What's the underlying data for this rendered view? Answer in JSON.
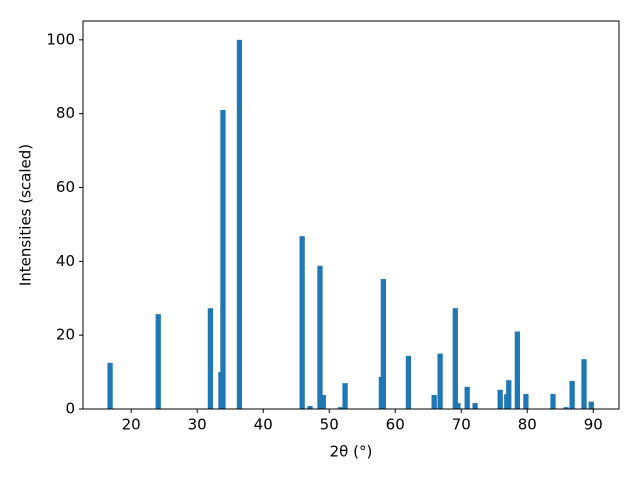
{
  "chart_data": {
    "type": "bar",
    "xlabel": "2θ (°)",
    "ylabel": "Intensities (scaled)",
    "x": [
      16.8,
      24.1,
      32.0,
      33.6,
      33.9,
      36.4,
      45.9,
      47.1,
      48.6,
      49.1,
      51.7,
      52.4,
      57.9,
      58.2,
      62.0,
      65.9,
      66.8,
      69.1,
      69.5,
      70.9,
      72.1,
      75.9,
      76.9,
      77.2,
      78.5,
      79.8,
      83.9,
      85.9,
      86.8,
      88.6,
      89.7
    ],
    "values": [
      12.5,
      25.7,
      27.3,
      10,
      81,
      100,
      46.8,
      0.8,
      38.8,
      3.8,
      0.5,
      7,
      8.7,
      35.2,
      14.4,
      3.8,
      15,
      27.3,
      1.6,
      6,
      1.6,
      5.2,
      4,
      7.8,
      21,
      4.1,
      4.1,
      0.5,
      7.6,
      13.5,
      2
    ],
    "color": "#1f77b4",
    "xlim": [
      12.7,
      93.9
    ],
    "xticks": [
      20,
      30,
      40,
      50,
      60,
      70,
      80,
      90
    ],
    "ylim": [
      0,
      105.1
    ],
    "yticks": [
      0,
      20,
      40,
      60,
      80,
      100
    ],
    "grid": false
  }
}
